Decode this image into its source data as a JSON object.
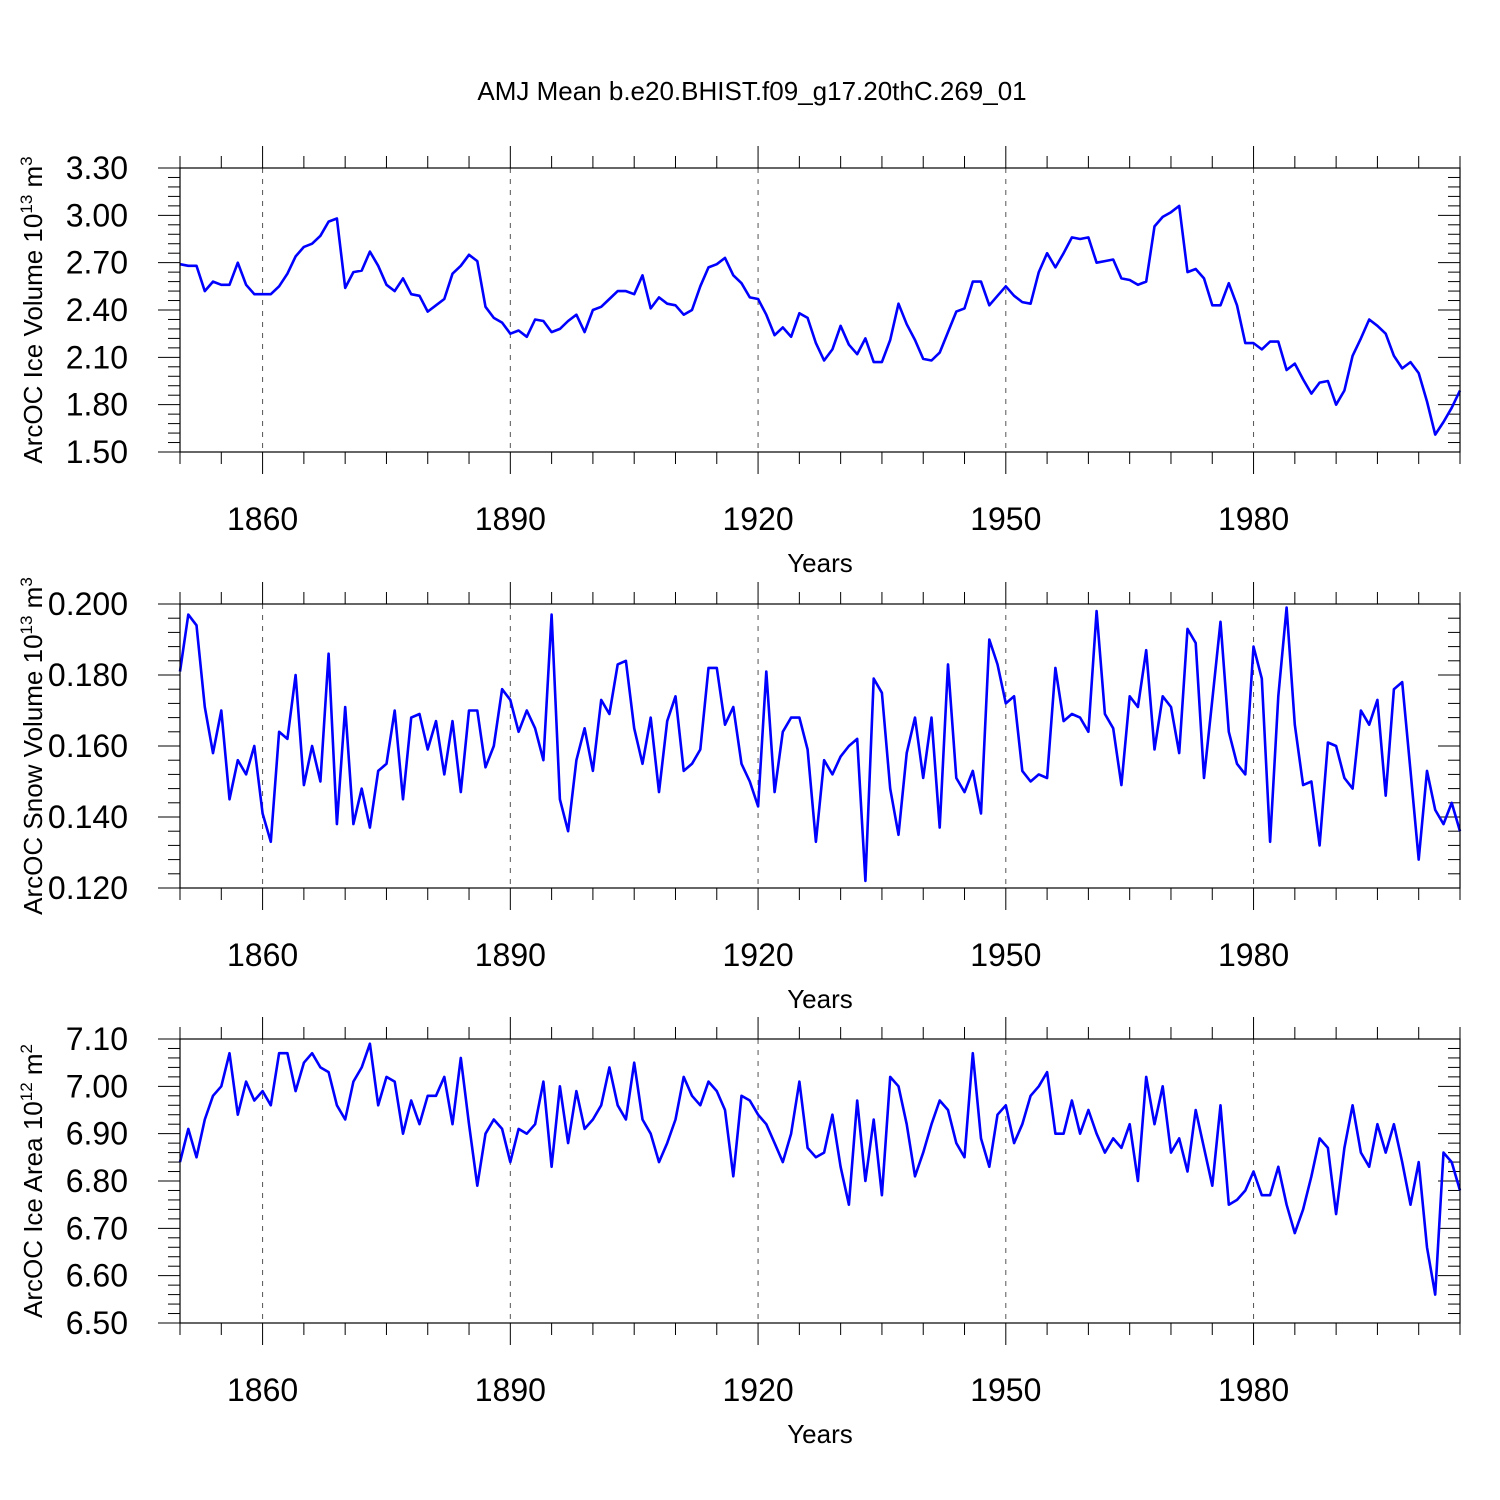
{
  "chart_data": [
    {
      "type": "line",
      "title": "AMJ Mean b.e20.BHIST.f09_g17.20thC.269_01",
      "ylabel": "ArcOC Ice Volume 10",
      "ylabel_exp": "13",
      "ylabel_unit": " m",
      "ylabel_unit_exp": "3",
      "xlabel": "Years",
      "xlim": [
        1850,
        2005
      ],
      "ylim": [
        1.5,
        3.3
      ],
      "yticks": [
        "3.30",
        "3.00",
        "2.70",
        "2.40",
        "2.10",
        "1.80",
        "1.50"
      ],
      "xticks": [
        "1860",
        "1890",
        "1920",
        "1950",
        "1980"
      ],
      "grid": "dashed vertical at major years",
      "line_color": "#0000ff",
      "series": [
        {
          "name": "Ice Volume",
          "start_year": 1850,
          "values": [
            2.69,
            2.68,
            2.68,
            2.52,
            2.58,
            2.56,
            2.56,
            2.7,
            2.56,
            2.5,
            2.5,
            2.5,
            2.55,
            2.63,
            2.74,
            2.8,
            2.82,
            2.87,
            2.96,
            2.98,
            2.54,
            2.64,
            2.65,
            2.77,
            2.68,
            2.56,
            2.52,
            2.6,
            2.5,
            2.49,
            2.39,
            2.43,
            2.47,
            2.63,
            2.68,
            2.75,
            2.71,
            2.42,
            2.35,
            2.32,
            2.25,
            2.27,
            2.23,
            2.34,
            2.33,
            2.26,
            2.28,
            2.33,
            2.37,
            2.26,
            2.4,
            2.42,
            2.47,
            2.52,
            2.52,
            2.5,
            2.62,
            2.41,
            2.48,
            2.44,
            2.43,
            2.37,
            2.4,
            2.55,
            2.67,
            2.69,
            2.73,
            2.62,
            2.57,
            2.48,
            2.47,
            2.37,
            2.24,
            2.29,
            2.23,
            2.38,
            2.35,
            2.19,
            2.08,
            2.15,
            2.3,
            2.18,
            2.12,
            2.22,
            2.07,
            2.07,
            2.21,
            2.44,
            2.31,
            2.21,
            2.09,
            2.08,
            2.13,
            2.26,
            2.39,
            2.41,
            2.58,
            2.58,
            2.43,
            2.49,
            2.55,
            2.49,
            2.45,
            2.44,
            2.64,
            2.76,
            2.67,
            2.76,
            2.86,
            2.85,
            2.86,
            2.7,
            2.71,
            2.72,
            2.6,
            2.59,
            2.56,
            2.58,
            2.93,
            2.99,
            3.02,
            3.06,
            2.64,
            2.66,
            2.6,
            2.43,
            2.43,
            2.57,
            2.43,
            2.19,
            2.19,
            2.15,
            2.2,
            2.2,
            2.02,
            2.06,
            1.96,
            1.87,
            1.94,
            1.95,
            1.8,
            1.89,
            2.11,
            2.22,
            2.34,
            2.3,
            2.25,
            2.11,
            2.03,
            2.07,
            2.0,
            1.82,
            1.61,
            1.69,
            1.78,
            1.89
          ]
        }
      ]
    },
    {
      "type": "line",
      "ylabel": "ArcOC Snow Volume 10",
      "ylabel_exp": "13",
      "ylabel_unit": " m",
      "ylabel_unit_exp": "3",
      "xlabel": "Years",
      "xlim": [
        1850,
        2005
      ],
      "ylim": [
        0.12,
        0.2
      ],
      "yticks": [
        "0.200",
        "0.180",
        "0.160",
        "0.140",
        "0.120"
      ],
      "xticks": [
        "1860",
        "1890",
        "1920",
        "1950",
        "1980"
      ],
      "line_color": "#0000ff",
      "series": [
        {
          "name": "Snow Volume",
          "start_year": 1850,
          "values": [
            0.181,
            0.197,
            0.194,
            0.171,
            0.158,
            0.17,
            0.145,
            0.156,
            0.152,
            0.16,
            0.141,
            0.133,
            0.164,
            0.162,
            0.18,
            0.149,
            0.16,
            0.15,
            0.186,
            0.138,
            0.171,
            0.138,
            0.148,
            0.137,
            0.153,
            0.155,
            0.17,
            0.145,
            0.168,
            0.169,
            0.159,
            0.167,
            0.152,
            0.167,
            0.147,
            0.17,
            0.17,
            0.154,
            0.16,
            0.176,
            0.173,
            0.164,
            0.17,
            0.165,
            0.156,
            0.197,
            0.145,
            0.136,
            0.156,
            0.165,
            0.153,
            0.173,
            0.169,
            0.183,
            0.184,
            0.165,
            0.155,
            0.168,
            0.147,
            0.167,
            0.174,
            0.153,
            0.155,
            0.159,
            0.182,
            0.182,
            0.166,
            0.171,
            0.155,
            0.15,
            0.143,
            0.181,
            0.147,
            0.164,
            0.168,
            0.168,
            0.159,
            0.133,
            0.156,
            0.152,
            0.157,
            0.16,
            0.162,
            0.122,
            0.179,
            0.175,
            0.148,
            0.135,
            0.158,
            0.168,
            0.151,
            0.168,
            0.137,
            0.183,
            0.151,
            0.147,
            0.153,
            0.141,
            0.19,
            0.183,
            0.172,
            0.174,
            0.153,
            0.15,
            0.152,
            0.151,
            0.182,
            0.167,
            0.169,
            0.168,
            0.164,
            0.198,
            0.169,
            0.165,
            0.149,
            0.174,
            0.171,
            0.187,
            0.159,
            0.174,
            0.171,
            0.158,
            0.193,
            0.189,
            0.151,
            0.173,
            0.195,
            0.164,
            0.155,
            0.152,
            0.188,
            0.179,
            0.133,
            0.174,
            0.199,
            0.166,
            0.149,
            0.15,
            0.132,
            0.161,
            0.16,
            0.151,
            0.148,
            0.17,
            0.166,
            0.173,
            0.146,
            0.176,
            0.178,
            0.153,
            0.128,
            0.153,
            0.142,
            0.138,
            0.144,
            0.136
          ]
        }
      ]
    },
    {
      "type": "line",
      "ylabel": "ArcOC Ice Area 10",
      "ylabel_exp": "12",
      "ylabel_unit": " m",
      "ylabel_unit_exp": "2",
      "xlabel": "Years",
      "xlim": [
        1850,
        2005
      ],
      "ylim": [
        6.5,
        7.1
      ],
      "yticks": [
        "7.10",
        "7.00",
        "6.90",
        "6.80",
        "6.70",
        "6.60",
        "6.50"
      ],
      "xticks": [
        "1860",
        "1890",
        "1920",
        "1950",
        "1980"
      ],
      "line_color": "#0000ff",
      "series": [
        {
          "name": "Ice Area",
          "start_year": 1850,
          "values": [
            6.84,
            6.91,
            6.85,
            6.93,
            6.98,
            7.0,
            7.07,
            6.94,
            7.01,
            6.97,
            6.99,
            6.96,
            7.07,
            7.07,
            6.99,
            7.05,
            7.07,
            7.04,
            7.03,
            6.96,
            6.93,
            7.01,
            7.04,
            7.09,
            6.96,
            7.02,
            7.01,
            6.9,
            6.97,
            6.92,
            6.98,
            6.98,
            7.02,
            6.92,
            7.06,
            6.92,
            6.79,
            6.9,
            6.93,
            6.91,
            6.84,
            6.91,
            6.9,
            6.92,
            7.01,
            6.83,
            7.0,
            6.88,
            6.99,
            6.91,
            6.93,
            6.96,
            7.04,
            6.96,
            6.93,
            7.05,
            6.93,
            6.9,
            6.84,
            6.88,
            6.93,
            7.02,
            6.98,
            6.96,
            7.01,
            6.99,
            6.95,
            6.81,
            6.98,
            6.97,
            6.94,
            6.92,
            6.88,
            6.84,
            6.9,
            7.01,
            6.87,
            6.85,
            6.86,
            6.94,
            6.83,
            6.75,
            6.97,
            6.8,
            6.93,
            6.77,
            7.02,
            7.0,
            6.92,
            6.81,
            6.86,
            6.92,
            6.97,
            6.95,
            6.88,
            6.85,
            7.07,
            6.89,
            6.83,
            6.94,
            6.96,
            6.88,
            6.92,
            6.98,
            7.0,
            7.03,
            6.9,
            6.9,
            6.97,
            6.9,
            6.95,
            6.9,
            6.86,
            6.89,
            6.87,
            6.92,
            6.8,
            7.02,
            6.92,
            7.0,
            6.86,
            6.89,
            6.82,
            6.95,
            6.87,
            6.79,
            6.96,
            6.75,
            6.76,
            6.78,
            6.82,
            6.77,
            6.77,
            6.83,
            6.75,
            6.69,
            6.74,
            6.81,
            6.89,
            6.87,
            6.73,
            6.87,
            6.96,
            6.86,
            6.83,
            6.92,
            6.86,
            6.92,
            6.84,
            6.75,
            6.84,
            6.66,
            6.56,
            6.86,
            6.84,
            6.78
          ]
        }
      ]
    }
  ]
}
